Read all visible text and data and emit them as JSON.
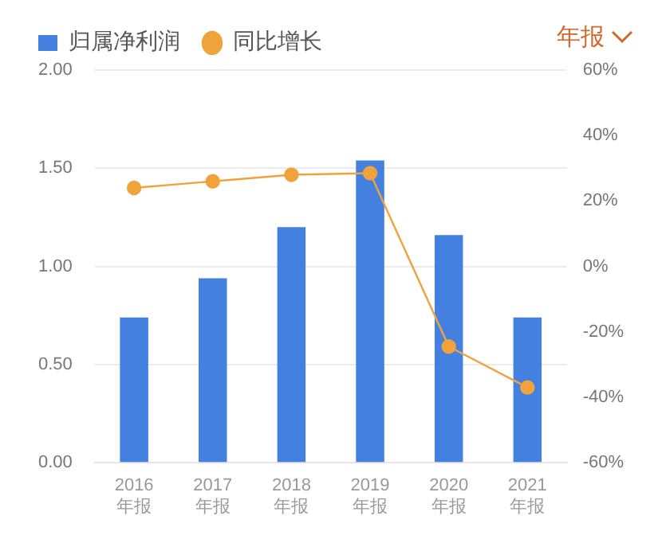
{
  "chart_data": {
    "type": "bar",
    "categories": [
      "2016\n年报",
      "2017\n年报",
      "2018\n年报",
      "2019\n年报",
      "2020\n年报",
      "2021\n年报"
    ],
    "series": [
      {
        "name": "归属净利润",
        "color": "#4480e0",
        "values": [
          0.74,
          0.94,
          1.2,
          1.54,
          1.16,
          0.74
        ]
      },
      {
        "name": "同比增长",
        "type": "line",
        "axis": "y2",
        "color": "#f0a33c",
        "values": [
          24,
          26,
          28,
          28.5,
          -24.5,
          -37
        ]
      }
    ],
    "ylim": [
      0,
      2
    ],
    "yticks": [
      {
        "value": 0,
        "label": "0.00"
      },
      {
        "value": 0.5,
        "label": "0.50"
      },
      {
        "value": 1,
        "label": "1.00"
      },
      {
        "value": 1.5,
        "label": "1.50"
      },
      {
        "value": 2,
        "label": "2.00"
      }
    ],
    "y2lim": [
      -60,
      60
    ],
    "y2ticks": [
      {
        "value": -60,
        "label": "-60%"
      },
      {
        "value": -40,
        "label": "-40%"
      },
      {
        "value": -20,
        "label": "-20%"
      },
      {
        "value": 0,
        "label": "0%"
      },
      {
        "value": 20,
        "label": "20%"
      },
      {
        "value": 40,
        "label": "40%"
      },
      {
        "value": 60,
        "label": "60%"
      }
    ],
    "grid": "y",
    "legend": "top left",
    "marker": "circle",
    "line_style": "solid",
    "annotations": [
      "年报"
    ]
  }
}
